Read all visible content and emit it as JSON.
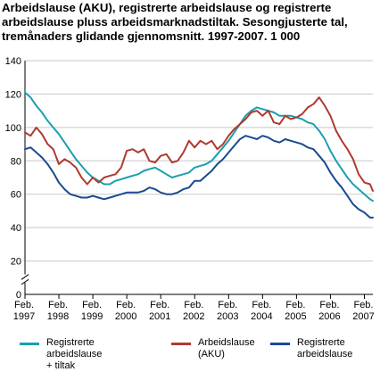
{
  "chart_data": {
    "type": "line",
    "title": "Arbeidslause (AKU), registrerte arbeidslause og registrerte arbeidslause pluss arbeidsmarknadstiltak. Sesongjusterte tal, tremånaders glidande gjennomsnitt. 1997-2007. 1 000",
    "xlabel": "",
    "ylabel": "",
    "ylim": [
      0,
      140
    ],
    "yticks": [
      0,
      20,
      40,
      60,
      80,
      100,
      120,
      140
    ],
    "axis_break": true,
    "grid": "horizontal",
    "xlim": [
      "1997-02",
      "2007-05"
    ],
    "xtick_labels": [
      {
        "date": "1997-02",
        "top": "Feb.",
        "bottom": "1997"
      },
      {
        "date": "1998-02",
        "top": "Feb.",
        "bottom": "1998"
      },
      {
        "date": "1999-02",
        "top": "Feb.",
        "bottom": "1999"
      },
      {
        "date": "2000-02",
        "top": "Feb.",
        "bottom": "2000"
      },
      {
        "date": "2001-02",
        "top": "Feb.",
        "bottom": "2001"
      },
      {
        "date": "2002-02",
        "top": "Feb.",
        "bottom": "2002"
      },
      {
        "date": "2003-02",
        "top": "Feb.",
        "bottom": "2003"
      },
      {
        "date": "2004-02",
        "top": "Feb.",
        "bottom": "2004"
      },
      {
        "date": "2005-02",
        "top": "Feb.",
        "bottom": "2005"
      },
      {
        "date": "2006-02",
        "top": "Feb.",
        "bottom": "2006"
      },
      {
        "date": "2007-02",
        "top": "Feb.",
        "bottom": "2007"
      }
    ],
    "legend_position": "bottom",
    "series": [
      {
        "name": "Registrerte arbeidslause + tiltak",
        "color": "#1a9fb0",
        "points": [
          [
            "1997-02",
            121
          ],
          [
            "1997-04",
            118
          ],
          [
            "1997-06",
            113
          ],
          [
            "1997-08",
            109
          ],
          [
            "1997-10",
            104
          ],
          [
            "1997-12",
            100
          ],
          [
            "1998-02",
            96
          ],
          [
            "1998-04",
            91
          ],
          [
            "1998-06",
            86
          ],
          [
            "1998-08",
            81
          ],
          [
            "1998-10",
            77
          ],
          [
            "1998-12",
            73
          ],
          [
            "1999-02",
            70
          ],
          [
            "1999-04",
            68
          ],
          [
            "1999-06",
            66
          ],
          [
            "1999-08",
            66
          ],
          [
            "1999-10",
            68
          ],
          [
            "1999-12",
            69
          ],
          [
            "2000-02",
            70
          ],
          [
            "2000-04",
            71
          ],
          [
            "2000-06",
            72
          ],
          [
            "2000-08",
            74
          ],
          [
            "2000-10",
            75
          ],
          [
            "2000-12",
            76
          ],
          [
            "2001-02",
            74
          ],
          [
            "2001-04",
            72
          ],
          [
            "2001-06",
            70
          ],
          [
            "2001-08",
            71
          ],
          [
            "2001-10",
            72
          ],
          [
            "2001-12",
            73
          ],
          [
            "2002-02",
            76
          ],
          [
            "2002-04",
            77
          ],
          [
            "2002-06",
            78
          ],
          [
            "2002-08",
            80
          ],
          [
            "2002-10",
            84
          ],
          [
            "2002-12",
            88
          ],
          [
            "2003-02",
            92
          ],
          [
            "2003-04",
            97
          ],
          [
            "2003-06",
            102
          ],
          [
            "2003-08",
            107
          ],
          [
            "2003-10",
            110
          ],
          [
            "2003-12",
            112
          ],
          [
            "2004-02",
            111
          ],
          [
            "2004-04",
            110
          ],
          [
            "2004-06",
            109
          ],
          [
            "2004-08",
            107
          ],
          [
            "2004-10",
            107
          ],
          [
            "2004-12",
            107
          ],
          [
            "2005-02",
            106
          ],
          [
            "2005-04",
            105
          ],
          [
            "2005-06",
            103
          ],
          [
            "2005-08",
            102
          ],
          [
            "2005-10",
            98
          ],
          [
            "2005-12",
            93
          ],
          [
            "2006-02",
            86
          ],
          [
            "2006-04",
            80
          ],
          [
            "2006-06",
            75
          ],
          [
            "2006-08",
            70
          ],
          [
            "2006-10",
            66
          ],
          [
            "2006-12",
            63
          ],
          [
            "2007-02",
            60
          ],
          [
            "2007-04",
            57
          ],
          [
            "2007-05",
            56
          ]
        ]
      },
      {
        "name": "Arbeidslause (AKU)",
        "color": "#b03a2e",
        "points": [
          [
            "1997-02",
            97
          ],
          [
            "1997-04",
            95
          ],
          [
            "1997-06",
            100
          ],
          [
            "1997-08",
            96
          ],
          [
            "1997-10",
            90
          ],
          [
            "1997-12",
            87
          ],
          [
            "1998-02",
            78
          ],
          [
            "1998-04",
            81
          ],
          [
            "1998-06",
            79
          ],
          [
            "1998-08",
            76
          ],
          [
            "1998-10",
            70
          ],
          [
            "1998-12",
            66
          ],
          [
            "1999-02",
            70
          ],
          [
            "1999-04",
            67
          ],
          [
            "1999-06",
            70
          ],
          [
            "1999-08",
            71
          ],
          [
            "1999-10",
            72
          ],
          [
            "1999-12",
            76
          ],
          [
            "2000-02",
            86
          ],
          [
            "2000-04",
            87
          ],
          [
            "2000-06",
            85
          ],
          [
            "2000-08",
            87
          ],
          [
            "2000-10",
            80
          ],
          [
            "2000-12",
            79
          ],
          [
            "2001-02",
            83
          ],
          [
            "2001-04",
            84
          ],
          [
            "2001-06",
            79
          ],
          [
            "2001-08",
            80
          ],
          [
            "2001-10",
            85
          ],
          [
            "2001-12",
            92
          ],
          [
            "2002-02",
            88
          ],
          [
            "2002-04",
            92
          ],
          [
            "2002-06",
            90
          ],
          [
            "2002-08",
            92
          ],
          [
            "2002-10",
            87
          ],
          [
            "2002-12",
            90
          ],
          [
            "2003-02",
            95
          ],
          [
            "2003-04",
            99
          ],
          [
            "2003-06",
            102
          ],
          [
            "2003-08",
            105
          ],
          [
            "2003-10",
            109
          ],
          [
            "2003-12",
            110
          ],
          [
            "2004-02",
            107
          ],
          [
            "2004-04",
            110
          ],
          [
            "2004-06",
            103
          ],
          [
            "2004-08",
            102
          ],
          [
            "2004-10",
            107
          ],
          [
            "2004-12",
            105
          ],
          [
            "2005-02",
            106
          ],
          [
            "2005-04",
            108
          ],
          [
            "2005-06",
            112
          ],
          [
            "2005-08",
            114
          ],
          [
            "2005-10",
            118
          ],
          [
            "2005-12",
            113
          ],
          [
            "2006-02",
            107
          ],
          [
            "2006-04",
            98
          ],
          [
            "2006-06",
            92
          ],
          [
            "2006-08",
            87
          ],
          [
            "2006-10",
            81
          ],
          [
            "2006-12",
            72
          ],
          [
            "2007-02",
            67
          ],
          [
            "2007-04",
            66
          ],
          [
            "2007-05",
            62
          ]
        ]
      },
      {
        "name": "Registrerte arbeidslause",
        "color": "#1a4a8f",
        "points": [
          [
            "1997-02",
            87
          ],
          [
            "1997-04",
            88
          ],
          [
            "1997-06",
            85
          ],
          [
            "1997-08",
            82
          ],
          [
            "1997-10",
            78
          ],
          [
            "1997-12",
            73
          ],
          [
            "1998-02",
            67
          ],
          [
            "1998-04",
            63
          ],
          [
            "1998-06",
            60
          ],
          [
            "1998-08",
            59
          ],
          [
            "1998-10",
            58
          ],
          [
            "1998-12",
            58
          ],
          [
            "1999-02",
            59
          ],
          [
            "1999-04",
            58
          ],
          [
            "1999-06",
            57
          ],
          [
            "1999-08",
            58
          ],
          [
            "1999-10",
            59
          ],
          [
            "1999-12",
            60
          ],
          [
            "2000-02",
            61
          ],
          [
            "2000-04",
            61
          ],
          [
            "2000-06",
            61
          ],
          [
            "2000-08",
            62
          ],
          [
            "2000-10",
            64
          ],
          [
            "2000-12",
            63
          ],
          [
            "2001-02",
            61
          ],
          [
            "2001-04",
            60
          ],
          [
            "2001-06",
            60
          ],
          [
            "2001-08",
            61
          ],
          [
            "2001-10",
            63
          ],
          [
            "2001-12",
            64
          ],
          [
            "2002-02",
            68
          ],
          [
            "2002-04",
            68
          ],
          [
            "2002-06",
            71
          ],
          [
            "2002-08",
            74
          ],
          [
            "2002-10",
            78
          ],
          [
            "2002-12",
            81
          ],
          [
            "2003-02",
            85
          ],
          [
            "2003-04",
            89
          ],
          [
            "2003-06",
            93
          ],
          [
            "2003-08",
            95
          ],
          [
            "2003-10",
            94
          ],
          [
            "2003-12",
            93
          ],
          [
            "2004-02",
            95
          ],
          [
            "2004-04",
            94
          ],
          [
            "2004-06",
            92
          ],
          [
            "2004-08",
            91
          ],
          [
            "2004-10",
            93
          ],
          [
            "2004-12",
            92
          ],
          [
            "2005-02",
            91
          ],
          [
            "2005-04",
            90
          ],
          [
            "2005-06",
            88
          ],
          [
            "2005-08",
            87
          ],
          [
            "2005-10",
            83
          ],
          [
            "2005-12",
            79
          ],
          [
            "2006-02",
            73
          ],
          [
            "2006-04",
            68
          ],
          [
            "2006-06",
            64
          ],
          [
            "2006-08",
            59
          ],
          [
            "2006-10",
            54
          ],
          [
            "2006-12",
            51
          ],
          [
            "2007-02",
            49
          ],
          [
            "2007-04",
            46
          ],
          [
            "2007-05",
            46
          ]
        ]
      }
    ]
  },
  "legend": [
    {
      "label": "Registrerte arbeidslause\n+ tiltak",
      "color": "#1a9fb0"
    },
    {
      "label": "Arbeidslause\n(AKU)",
      "color": "#b03a2e"
    },
    {
      "label": "Registrerte\narbeidslause",
      "color": "#1a4a8f"
    }
  ]
}
